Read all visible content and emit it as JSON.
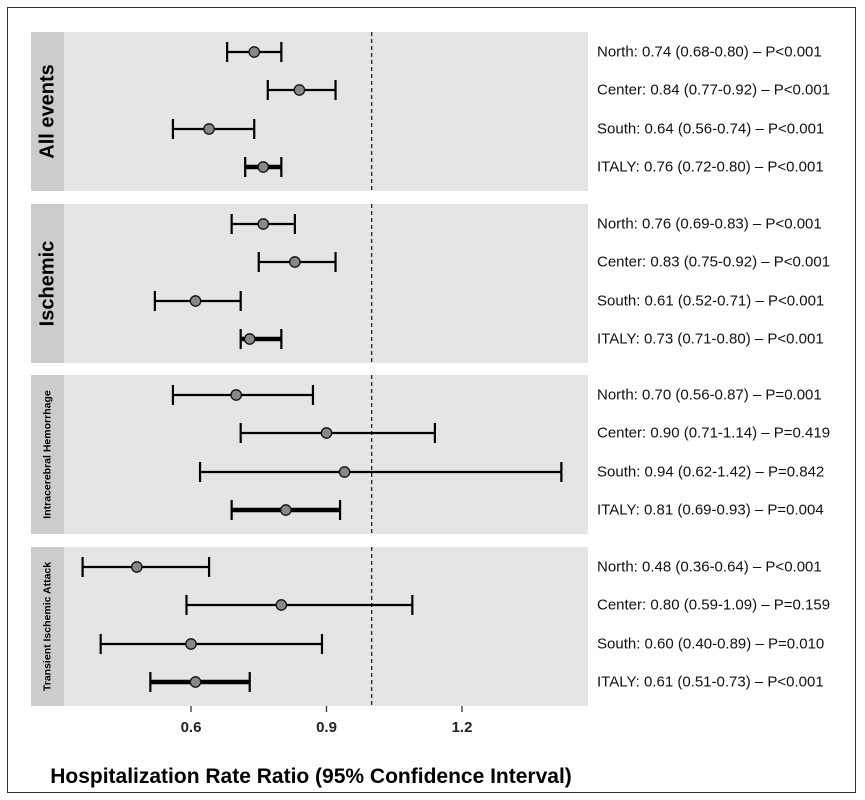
{
  "chart_data": {
    "type": "forest",
    "xlabel": "Hospitalization Rate Ratio (95% Confidence Interval)",
    "x_ticks": [
      0.6,
      0.9,
      1.2
    ],
    "x_tick_labels": [
      "0.6",
      "0.9",
      "1.2"
    ],
    "xlim": [
      0.43,
      1.47
    ],
    "reference_line": 1.0,
    "panels": [
      {
        "name": "All events",
        "rows": [
          {
            "region": "North",
            "estimate": 0.74,
            "lower": 0.68,
            "upper": 0.8,
            "label": "North: 0.74 (0.68-0.80) – P<0.001"
          },
          {
            "region": "Center",
            "estimate": 0.84,
            "lower": 0.77,
            "upper": 0.92,
            "label": "Center: 0.84 (0.77-0.92) – P<0.001"
          },
          {
            "region": "South",
            "estimate": 0.64,
            "lower": 0.56,
            "upper": 0.74,
            "label": "South: 0.64 (0.56-0.74) – P<0.001"
          },
          {
            "region": "ITALY",
            "estimate": 0.76,
            "lower": 0.72,
            "upper": 0.8,
            "label": "ITALY: 0.76 (0.72-0.80) – P<0.001"
          }
        ]
      },
      {
        "name": "Ischemic",
        "rows": [
          {
            "region": "North",
            "estimate": 0.76,
            "lower": 0.69,
            "upper": 0.83,
            "label": "North: 0.76 (0.69-0.83) – P<0.001"
          },
          {
            "region": "Center",
            "estimate": 0.83,
            "lower": 0.75,
            "upper": 0.92,
            "label": "Center: 0.83 (0.75-0.92) – P<0.001"
          },
          {
            "region": "South",
            "estimate": 0.61,
            "lower": 0.52,
            "upper": 0.71,
            "label": "South: 0.61 (0.52-0.71) – P<0.001"
          },
          {
            "region": "ITALY",
            "estimate": 0.73,
            "lower": 0.71,
            "upper": 0.8,
            "label": "ITALY: 0.73 (0.71-0.80) – P<0.001"
          }
        ]
      },
      {
        "name": "Intracerebral Hemorrhage",
        "rows": [
          {
            "region": "North",
            "estimate": 0.7,
            "lower": 0.56,
            "upper": 0.87,
            "label": "North: 0.70 (0.56-0.87) – P=0.001"
          },
          {
            "region": "Center",
            "estimate": 0.9,
            "lower": 0.71,
            "upper": 1.14,
            "label": "Center: 0.90 (0.71-1.14) – P=0.419"
          },
          {
            "region": "South",
            "estimate": 0.94,
            "lower": 0.62,
            "upper": 1.42,
            "label": "South: 0.94 (0.62-1.42) – P=0.842"
          },
          {
            "region": "ITALY",
            "estimate": 0.81,
            "lower": 0.69,
            "upper": 0.93,
            "label": "ITALY: 0.81 (0.69-0.93) – P=0.004"
          }
        ]
      },
      {
        "name": "Transient Ischemic Attack",
        "rows": [
          {
            "region": "North",
            "estimate": 0.48,
            "lower": 0.36,
            "upper": 0.64,
            "label": "North: 0.48 (0.36-0.64) – P<0.001"
          },
          {
            "region": "Center",
            "estimate": 0.8,
            "lower": 0.59,
            "upper": 1.09,
            "label": "Center: 0.80 (0.59-1.09) – P=0.159"
          },
          {
            "region": "South",
            "estimate": 0.6,
            "lower": 0.4,
            "upper": 0.89,
            "label": "South: 0.60 (0.40-0.89) – P=0.010"
          },
          {
            "region": "ITALY",
            "estimate": 0.61,
            "lower": 0.51,
            "upper": 0.73,
            "label": "ITALY: 0.61 (0.51-0.73) – P<0.001"
          }
        ]
      }
    ]
  },
  "colors": {
    "panel_background": "#e5e5e5",
    "strip_background": "#cccccc",
    "point_fill": "#888888",
    "line": "#000000"
  }
}
